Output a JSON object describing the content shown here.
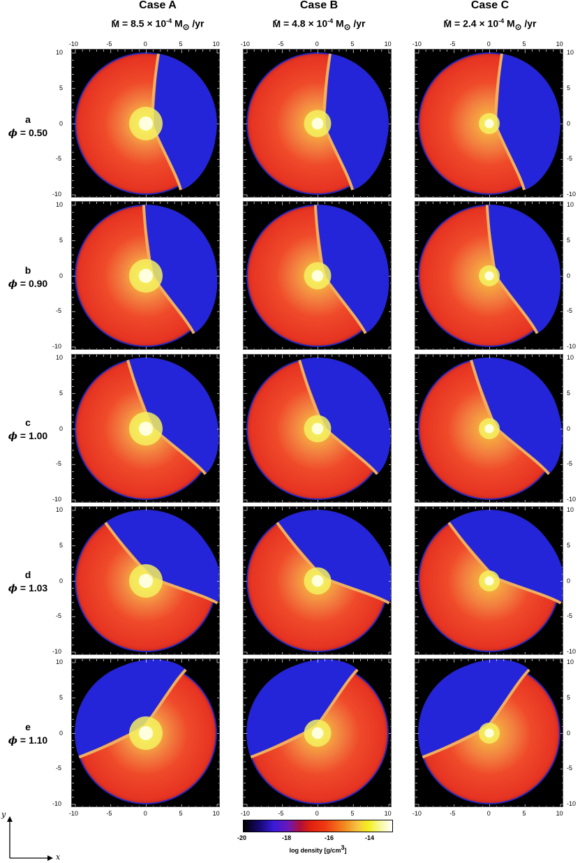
{
  "columns": [
    {
      "title": "Case A",
      "mdot_value": "8.5",
      "mdot_exp": "-4"
    },
    {
      "title": "Case B",
      "mdot_value": "4.8",
      "mdot_exp": "-4"
    },
    {
      "title": "Case C",
      "mdot_value": "2.4",
      "mdot_exp": "-4"
    }
  ],
  "mdot_prefix": "M",
  "mdot_unit": "M",
  "mdot_unit_suffix": " /yr",
  "mdot_times": " × 10",
  "sun_symbol": "⊙",
  "rows": [
    {
      "letter": "a",
      "phi": "0.50"
    },
    {
      "letter": "b",
      "phi": "0.90"
    },
    {
      "letter": "c",
      "phi": "1.00"
    },
    {
      "letter": "d",
      "phi": "1.03"
    },
    {
      "letter": "e",
      "phi": "1.10"
    }
  ],
  "phi_symbol": "ϕ",
  "axis_ticks": [
    "-10",
    "-5",
    "0",
    "5",
    "10"
  ],
  "colorbar": {
    "label": "log density  [g/cm",
    "label_exp": "3",
    "label_end": "]",
    "ticks": [
      "-20",
      "-18",
      "-16",
      "-14"
    ]
  },
  "axis_x": "x",
  "axis_y": "y"
}
